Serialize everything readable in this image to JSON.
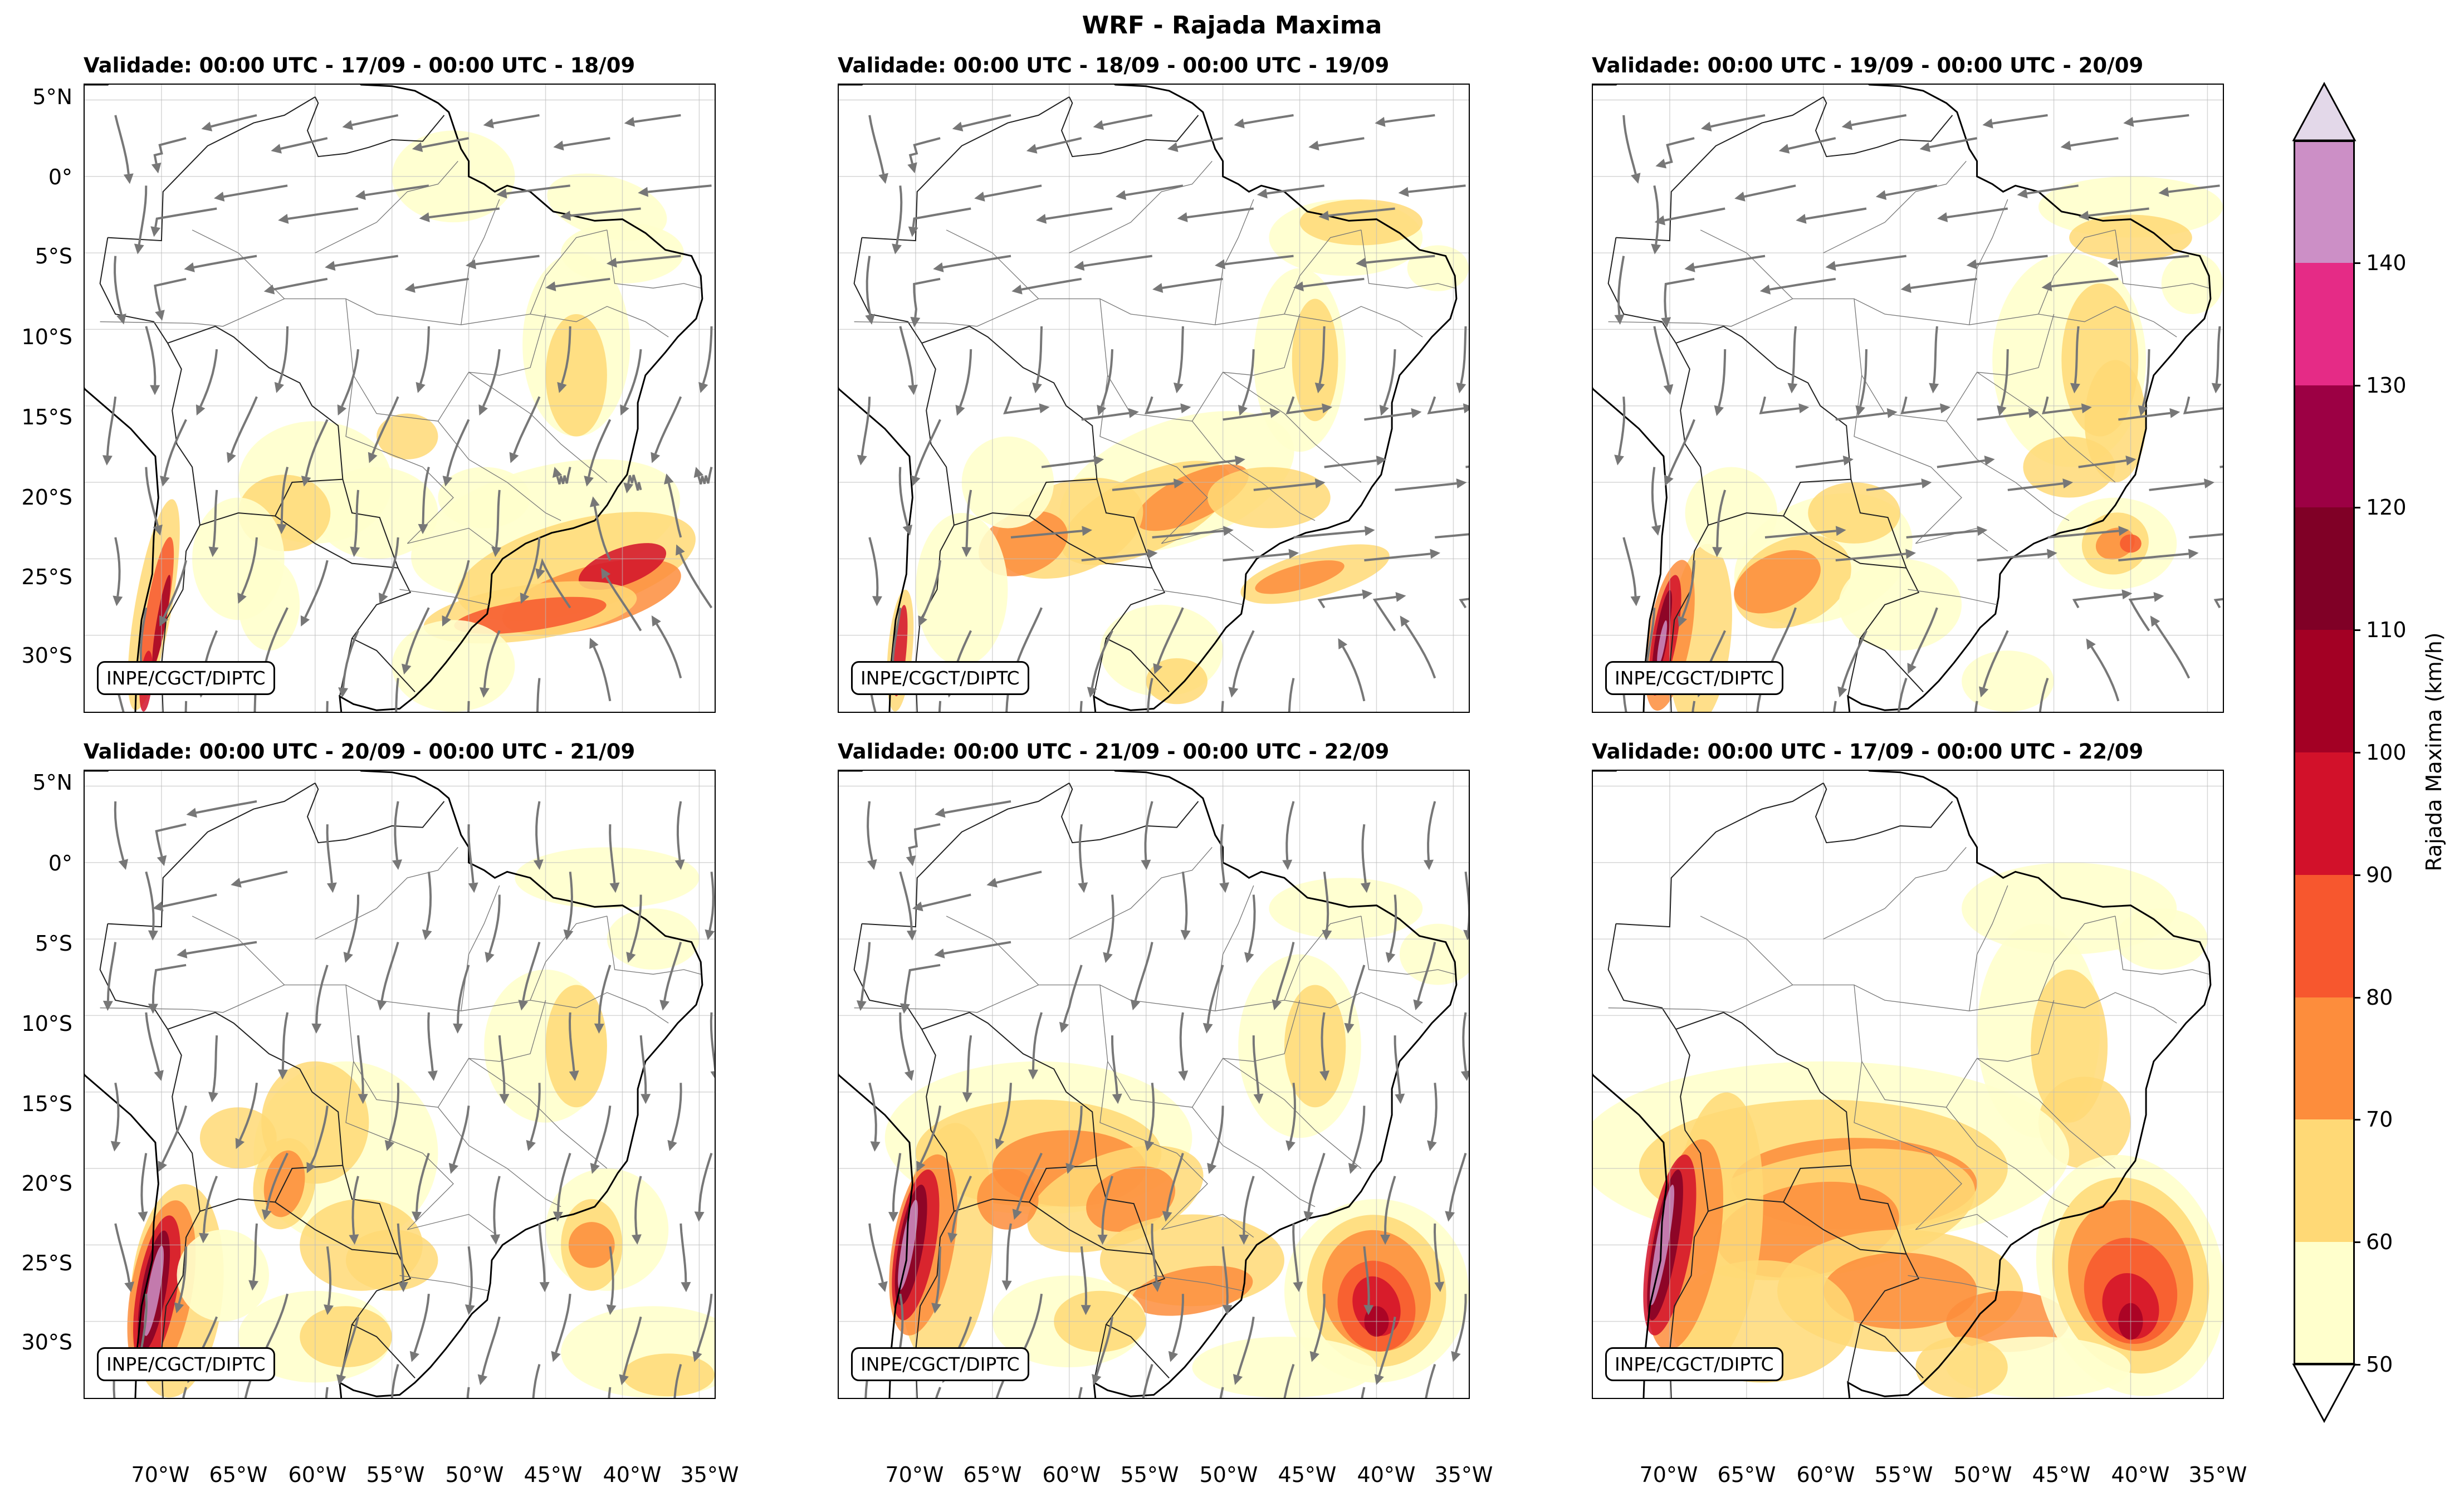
{
  "figure": {
    "suptitle": "WRF - Rajada Maxima",
    "credit": "INPE/CGCT/DIPTC"
  },
  "panels": [
    {
      "title": "Validade: 00:00 UTC - 17/09 - 00:00 UTC - 18/09",
      "credit": "INPE/CGCT/DIPTC",
      "streamlines": true
    },
    {
      "title": "Validade: 00:00 UTC - 18/09 - 00:00 UTC - 19/09",
      "credit": "INPE/CGCT/DIPTC",
      "streamlines": true
    },
    {
      "title": "Validade: 00:00 UTC - 19/09 - 00:00 UTC - 20/09",
      "credit": "INPE/CGCT/DIPTC",
      "streamlines": true
    },
    {
      "title": "Validade: 00:00 UTC - 20/09 - 00:00 UTC - 21/09",
      "credit": "INPE/CGCT/DIPTC",
      "streamlines": true
    },
    {
      "title": "Validade: 00:00 UTC - 21/09 - 00:00 UTC - 22/09",
      "credit": "INPE/CGCT/DIPTC",
      "streamlines": true
    },
    {
      "title": "Validade: 00:00 UTC - 17/09 - 00:00 UTC - 22/09",
      "credit": "INPE/CGCT/DIPTC",
      "streamlines": false
    }
  ],
  "axes": {
    "lat_ticks": [
      "5°N",
      "0°",
      "5°S",
      "10°S",
      "15°S",
      "20°S",
      "25°S",
      "30°S"
    ],
    "lon_ticks": [
      "70°W",
      "65°W",
      "60°W",
      "55°W",
      "50°W",
      "45°W",
      "40°W",
      "35°W"
    ]
  },
  "colorbar": {
    "label": "Rajada Maxima (km/h)",
    "ticks": [
      "50",
      "60",
      "70",
      "80",
      "90",
      "100",
      "110",
      "120",
      "130",
      "140"
    ],
    "colors": [
      "#ffffcc",
      "#ffd976",
      "#fd8d3c",
      "#f7572e",
      "#d2112a",
      "#a30024",
      "#800026",
      "#9c0044",
      "#e52b86",
      "#cc8fc6"
    ],
    "under_color": "#ffffff",
    "over_color": "#e3d8e9"
  },
  "chart_data": {
    "type": "map",
    "variable": "Rajada Maxima",
    "units": "km/h",
    "levels": [
      50,
      60,
      70,
      80,
      90,
      100,
      110,
      120,
      130,
      140
    ],
    "lon_range": [
      -75,
      -34
    ],
    "lat_range": [
      -35,
      6
    ]
  }
}
